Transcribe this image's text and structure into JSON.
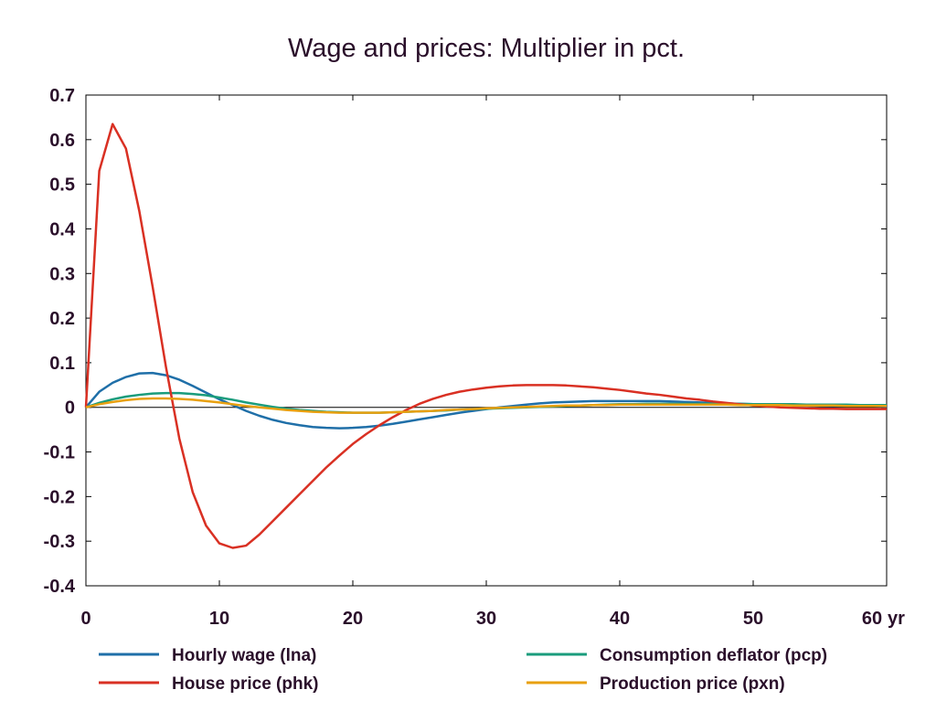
{
  "chart_data": {
    "type": "line",
    "title": "Wage and prices: Multiplier in pct.",
    "xlabel": "",
    "ylabel": "",
    "x_unit_label": "yr",
    "xlim": [
      0,
      60
    ],
    "ylim": [
      -0.4,
      0.7
    ],
    "x_ticks": [
      "0",
      "10",
      "20",
      "30",
      "40",
      "50",
      "60"
    ],
    "y_ticks": [
      "0.7",
      "0.6",
      "0.5",
      "0.4",
      "0.3",
      "0.2",
      "0.1",
      "0",
      "-0.1",
      "-0.2",
      "-0.3",
      "-0.4"
    ],
    "grid": false,
    "zero_line": true,
    "legend_position": "bottom",
    "x": [
      0,
      1,
      2,
      3,
      4,
      5,
      6,
      7,
      8,
      9,
      10,
      11,
      12,
      13,
      14,
      15,
      16,
      17,
      18,
      19,
      20,
      21,
      22,
      23,
      24,
      25,
      26,
      27,
      28,
      29,
      30,
      31,
      32,
      33,
      34,
      35,
      36,
      37,
      38,
      39,
      40,
      41,
      42,
      43,
      44,
      45,
      46,
      47,
      48,
      49,
      50,
      51,
      52,
      53,
      54,
      55,
      56,
      57,
      58,
      59,
      60
    ],
    "series": [
      {
        "name": "Hourly wage (lna)",
        "color": "#1f6fa8",
        "values": [
          0,
          0.035,
          0.055,
          0.068,
          0.076,
          0.077,
          0.072,
          0.062,
          0.048,
          0.033,
          0.018,
          0.005,
          -0.008,
          -0.019,
          -0.028,
          -0.035,
          -0.04,
          -0.044,
          -0.046,
          -0.047,
          -0.046,
          -0.044,
          -0.041,
          -0.037,
          -0.032,
          -0.027,
          -0.022,
          -0.017,
          -0.012,
          -0.008,
          -0.004,
          0,
          0.003,
          0.006,
          0.009,
          0.011,
          0.012,
          0.013,
          0.014,
          0.014,
          0.014,
          0.014,
          0.014,
          0.014,
          0.013,
          0.012,
          0.011,
          0.01,
          0.009,
          0.008,
          0.007,
          0.006,
          0.005,
          0.005,
          0.004,
          0.004,
          0.003,
          0.003,
          0.003,
          0.003,
          0.002
        ]
      },
      {
        "name": "Consumption deflator (pcp)",
        "color": "#1a9c7c",
        "values": [
          0,
          0.01,
          0.018,
          0.024,
          0.028,
          0.031,
          0.032,
          0.032,
          0.03,
          0.027,
          0.022,
          0.017,
          0.011,
          0.006,
          0.001,
          -0.003,
          -0.006,
          -0.008,
          -0.01,
          -0.011,
          -0.012,
          -0.012,
          -0.012,
          -0.011,
          -0.01,
          -0.009,
          -0.008,
          -0.007,
          -0.005,
          -0.004,
          -0.003,
          -0.002,
          -0.001,
          0,
          0.001,
          0.002,
          0.003,
          0.004,
          0.005,
          0.006,
          0.007,
          0.007,
          0.008,
          0.008,
          0.008,
          0.008,
          0.008,
          0.008,
          0.008,
          0.008,
          0.007,
          0.007,
          0.007,
          0.007,
          0.006,
          0.006,
          0.006,
          0.006,
          0.005,
          0.005,
          0.005
        ]
      },
      {
        "name": "House price (phk)",
        "color": "#d93023",
        "values": [
          0,
          0.53,
          0.635,
          0.58,
          0.44,
          0.27,
          0.09,
          -0.07,
          -0.19,
          -0.265,
          -0.305,
          -0.315,
          -0.31,
          -0.285,
          -0.255,
          -0.225,
          -0.195,
          -0.165,
          -0.135,
          -0.108,
          -0.082,
          -0.06,
          -0.04,
          -0.022,
          -0.006,
          0.008,
          0.019,
          0.028,
          0.035,
          0.04,
          0.044,
          0.047,
          0.049,
          0.05,
          0.05,
          0.05,
          0.049,
          0.047,
          0.045,
          0.042,
          0.039,
          0.035,
          0.031,
          0.028,
          0.024,
          0.02,
          0.017,
          0.013,
          0.01,
          0.007,
          0.004,
          0.002,
          0,
          -0.001,
          -0.002,
          -0.003,
          -0.003,
          -0.004,
          -0.004,
          -0.004,
          -0.004
        ]
      },
      {
        "name": "Production price (pxn)",
        "color": "#e8a010",
        "values": [
          0,
          0.007,
          0.012,
          0.016,
          0.019,
          0.02,
          0.02,
          0.019,
          0.017,
          0.014,
          0.011,
          0.007,
          0.003,
          0,
          -0.003,
          -0.006,
          -0.008,
          -0.01,
          -0.011,
          -0.012,
          -0.012,
          -0.012,
          -0.012,
          -0.011,
          -0.01,
          -0.009,
          -0.008,
          -0.006,
          -0.005,
          -0.004,
          -0.002,
          -0.001,
          0,
          0.001,
          0.002,
          0.003,
          0.004,
          0.004,
          0.005,
          0.005,
          0.006,
          0.006,
          0.006,
          0.006,
          0.006,
          0.006,
          0.006,
          0.006,
          0.006,
          0.005,
          0.005,
          0.005,
          0.005,
          0.004,
          0.004,
          0.004,
          0.004,
          0.003,
          0.003,
          0.003,
          0.003
        ]
      }
    ]
  }
}
